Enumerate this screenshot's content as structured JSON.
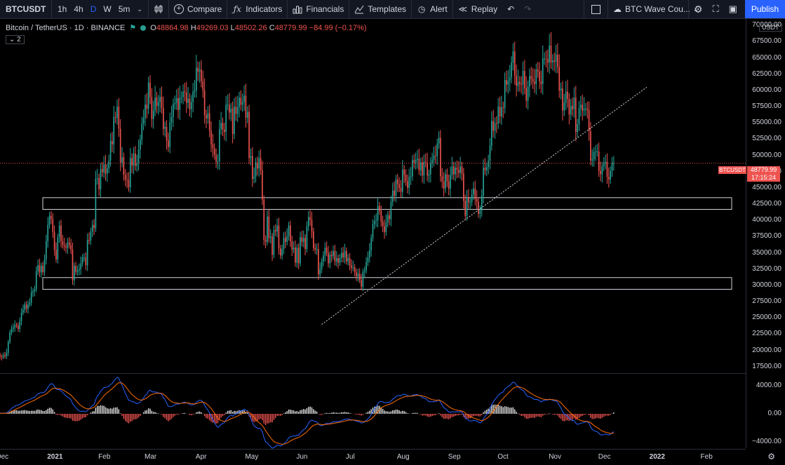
{
  "toolbar": {
    "symbol": "BTCUSDT",
    "timeframes": [
      "1h",
      "4h",
      "D",
      "W",
      "5m"
    ],
    "active_timeframe": "D",
    "compare": "Compare",
    "indicators": "Indicators",
    "financials": "Financials",
    "templates": "Templates",
    "alert": "Alert",
    "replay": "Replay",
    "layout_name": "BTC Wave Cou...",
    "publish": "Publish"
  },
  "legend": {
    "title": "Bitcoin / TetherUS · 1D · BINANCE",
    "o_label": "O",
    "o": "48864.98",
    "h_label": "H",
    "h": "49269.03",
    "l_label": "L",
    "l": "48502.26",
    "c_label": "C",
    "c": "48779.99",
    "change": "−84.99 (−0.17%)",
    "badge": "2"
  },
  "price_axis": {
    "currency": "USDT",
    "ticks": [
      "70000.00",
      "67500.00",
      "65000.00",
      "62500.00",
      "60000.00",
      "57500.00",
      "55000.00",
      "52500.00",
      "50000.00",
      "47500.00",
      "45000.00",
      "42500.00",
      "40000.00",
      "37500.00",
      "35000.00",
      "32500.00",
      "30000.00",
      "27500.00",
      "25000.00",
      "22500.00",
      "20000.00",
      "17500.00"
    ],
    "last_price": "48779.99",
    "countdown": "17:15:24",
    "symbol_label": "BTCUSDT"
  },
  "macd_axis": {
    "ticks": [
      "4000.00",
      "0.00",
      "−4000.00"
    ]
  },
  "time_axis": {
    "labels": [
      {
        "text": "Dec",
        "bold": false
      },
      {
        "text": "2021",
        "bold": true
      },
      {
        "text": "Feb",
        "bold": false
      },
      {
        "text": "Mar",
        "bold": false
      },
      {
        "text": "Apr",
        "bold": false
      },
      {
        "text": "May",
        "bold": false
      },
      {
        "text": "Jun",
        "bold": false
      },
      {
        "text": "Jul",
        "bold": false
      },
      {
        "text": "Aug",
        "bold": false
      },
      {
        "text": "Sep",
        "bold": false
      },
      {
        "text": "Oct",
        "bold": false
      },
      {
        "text": "Nov",
        "bold": false
      },
      {
        "text": "Dec",
        "bold": false
      },
      {
        "text": "2022",
        "bold": true
      },
      {
        "text": "Feb",
        "bold": false
      }
    ]
  },
  "chart_data": {
    "type": "candlestick",
    "y_range": [
      16500,
      71000
    ],
    "x_range_dates": [
      "2020-11-30",
      "2022-02-25"
    ],
    "colors": {
      "up": "#26a69a",
      "down": "#ef5350",
      "macd": "#2962ff",
      "signal": "#ff6d00",
      "hist_up": "#e0e0e0",
      "hist_down": "#ef5350"
    },
    "zones": [
      {
        "low": 41700,
        "high": 43500
      },
      {
        "low": 29400,
        "high": 31200
      }
    ],
    "trendline": {
      "from": [
        "2021-06-13",
        24000
      ],
      "to": [
        "2021-12-27",
        60500
      ]
    },
    "macd_range": [
      -4500,
      5000
    ],
    "closes": [
      18800,
      18450,
      19150,
      19300,
      18900,
      19100,
      19200,
      19450,
      18800,
      19400,
      19050,
      18950,
      19250,
      19100,
      19650,
      21300,
      22750,
      23300,
      23500,
      23900,
      23800,
      23300,
      24500,
      25800,
      26250,
      27050,
      26400,
      27050,
      27350,
      28900,
      29100,
      29400,
      32200,
      33100,
      32000,
      33000,
      32050,
      34000,
      36800,
      39300,
      40700,
      40200,
      38200,
      35500,
      34000,
      37400,
      39200,
      36800,
      36200,
      36000,
      35800,
      36600,
      36200,
      35500,
      30800,
      33000,
      32100,
      32300,
      32500,
      33400,
      34300,
      34300,
      33100,
      37000,
      36900,
      38300,
      39300,
      38800,
      46400,
      46500,
      44800,
      47900,
      47400,
      48600,
      47200,
      48000,
      49200,
      52200,
      51700,
      55900,
      55800,
      57500,
      54100,
      48900,
      49700,
      47000,
      46300,
      46200,
      45100,
      49600,
      48400,
      50300,
      48400,
      48800,
      50900,
      52400,
      54900,
      55800,
      57800,
      57200,
      61200,
      59000,
      55600,
      56900,
      58900,
      57600,
      58200,
      59000,
      57300,
      54100,
      54400,
      52300,
      51300,
      55100,
      55900,
      57900,
      58100,
      58800,
      57000,
      58900,
      59000,
      59800,
      59700,
      58100,
      58700,
      57100,
      58200,
      59800,
      60000,
      63500,
      62900,
      63200,
      61400,
      60000,
      56200,
      55700,
      56500,
      53800,
      51700,
      51100,
      50100,
      49000,
      49100,
      54000,
      55000,
      54000,
      53600,
      57800,
      57800,
      56600,
      57200,
      53300,
      57500,
      56400,
      57400,
      58900,
      57800,
      58200,
      59200,
      55800,
      56700,
      49600,
      49900,
      46400,
      46700,
      48900,
      48000,
      49600,
      47700,
      43200,
      37000,
      36700,
      40600,
      37300,
      37500,
      34700,
      38500,
      38300,
      39200,
      35700,
      34600,
      35600,
      37300,
      36700,
      37600,
      39200,
      36800,
      35500,
      35800,
      33500,
      35800,
      33400,
      37400,
      36700,
      37300,
      35600,
      39100,
      40500,
      40100,
      38300,
      35800,
      35500,
      35600,
      31700,
      32500,
      33700,
      34600,
      35800,
      35000,
      33400,
      34700,
      34500,
      35300,
      33700,
      34200,
      33500,
      34200,
      35000,
      34300,
      35300,
      33700,
      34200,
      33100,
      32700,
      32800,
      32000,
      31400,
      31800,
      30800,
      29800,
      32100,
      32300,
      33600,
      34300,
      35400,
      37300,
      39400,
      39900,
      40000,
      42200,
      41500,
      39800,
      39100,
      38200,
      39700,
      40800,
      40200,
      42800,
      44600,
      43800,
      46300,
      45600,
      45000,
      44400,
      47800,
      47000,
      46000,
      45000,
      46700,
      46800,
      49300,
      48900,
      49300,
      49500,
      47700,
      48900,
      46900,
      49000,
      48900,
      46900,
      47100,
      48800,
      49300,
      50000,
      49900,
      51800,
      52700,
      46800,
      46000,
      44900,
      47100,
      46000,
      44900,
      47000,
      48300,
      47100,
      48100,
      47800,
      47300,
      48300,
      47200,
      43000,
      40700,
      43500,
      42800,
      42800,
      44000,
      44900,
      43300,
      42900,
      41000,
      41500,
      43800,
      48100,
      47700,
      48200,
      49200,
      51500,
      55300,
      53800,
      55000,
      54900,
      57500,
      56000,
      57400,
      57300,
      61600,
      60900,
      61500,
      62000,
      64300,
      66000,
      62300,
      60700,
      61300,
      61000,
      60900,
      63000,
      60300,
      58400,
      60600,
      62200,
      61800,
      61400,
      61000,
      63200,
      62900,
      61400,
      61000,
      64900,
      64900,
      64800,
      64300,
      66900,
      64300,
      64600,
      64400,
      65500,
      63600,
      60000,
      60300,
      56900,
      58100,
      59800,
      58700,
      56300,
      57600,
      57100,
      58900,
      53600,
      54800,
      57300,
      57800,
      56900,
      57200,
      57200,
      57000,
      53700,
      49200,
      49400,
      50500,
      50600,
      50600,
      47600,
      47100,
      48300,
      48800,
      49000,
      46700,
      46300,
      47600,
      48800,
      48800
    ]
  }
}
